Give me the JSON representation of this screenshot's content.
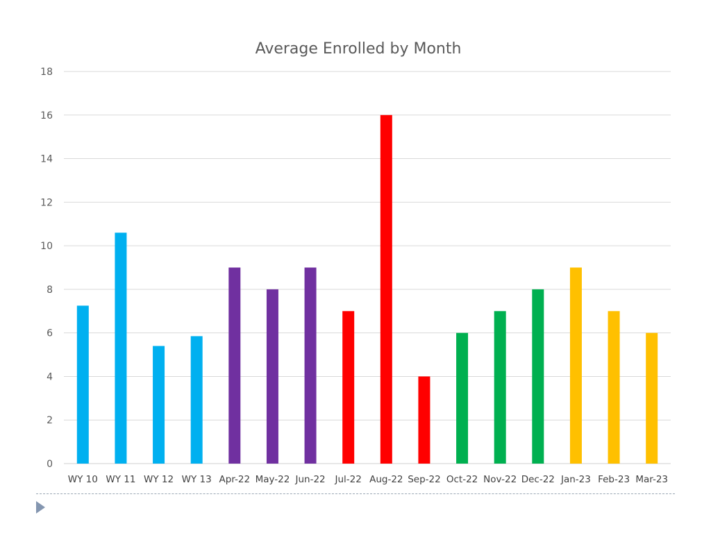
{
  "chart_data": {
    "type": "bar",
    "title": "Average Enrolled by Month",
    "xlabel": "",
    "ylabel": "",
    "ylim": [
      0,
      18
    ],
    "yticks": [
      0,
      2,
      4,
      6,
      8,
      10,
      12,
      14,
      16,
      18
    ],
    "grid": true,
    "legend": "none",
    "categories": [
      "WY 10",
      "WY 11",
      "WY 12",
      "WY 13",
      "Apr-22",
      "May-22",
      "Jun-22",
      "Jul-22",
      "Aug-22",
      "Sep-22",
      "Oct-22",
      "Nov-22",
      "Dec-22",
      "Jan-23",
      "Feb-23",
      "Mar-23"
    ],
    "values": [
      7.25,
      10.6,
      5.4,
      5.85,
      9,
      8,
      9,
      7,
      16,
      4,
      6,
      7,
      8,
      9,
      7,
      6
    ],
    "bar_colors": [
      "#00b0f0",
      "#00b0f0",
      "#00b0f0",
      "#00b0f0",
      "#7030a0",
      "#7030a0",
      "#7030a0",
      "#ff0000",
      "#ff0000",
      "#ff0000",
      "#00b050",
      "#00b050",
      "#00b050",
      "#ffc000",
      "#ffc000",
      "#ffc000"
    ]
  },
  "slide": {
    "footer_marker_icon": "triangle-bullet-icon",
    "footer_color": "#8496b0"
  }
}
